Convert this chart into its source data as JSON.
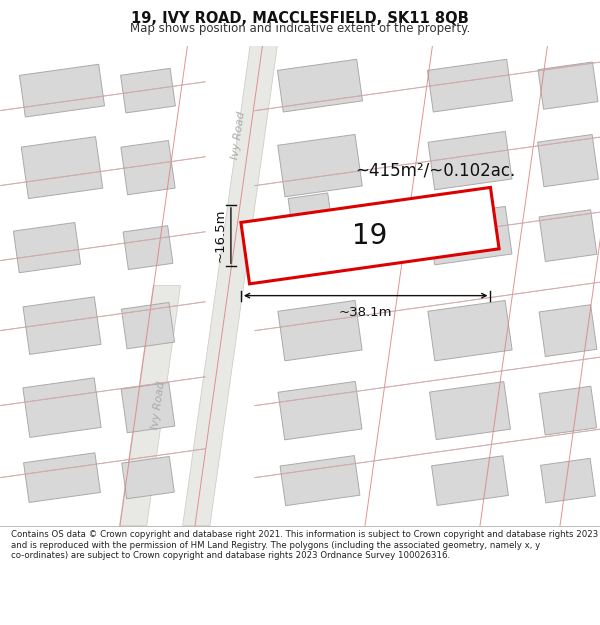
{
  "title": "19, IVY ROAD, MACCLESFIELD, SK11 8QB",
  "subtitle": "Map shows position and indicative extent of the property.",
  "footer": "Contains OS data © Crown copyright and database right 2021. This information is subject to Crown copyright and database rights 2023 and is reproduced with the permission of HM Land Registry. The polygons (including the associated geometry, namely x, y co-ordinates) are subject to Crown copyright and database rights 2023 Ordnance Survey 100026316.",
  "area_text": "~415m²/~0.102ac.",
  "label_19": "19",
  "dim_width": "~38.1m",
  "dim_height": "~16.5m",
  "road_label": "Ivy Road",
  "road_label2": "Ivy Road",
  "title_fontsize": 10.5,
  "subtitle_fontsize": 8.5,
  "footer_fontsize": 6.2,
  "map_bg": "#ffffff",
  "road_fill": "#e8e8e4",
  "road_stroke": "#c8c8c4",
  "building_fill": "#d8d8d8",
  "building_stroke": "#aaaaaa",
  "plot_stroke_red": "#dd0000",
  "plot_stroke_gray": "#b0b0b0",
  "boundary_red": "#e08080",
  "boundary_gray": "#c0c0c0",
  "dim_color": "#111111",
  "road_text_color": "#aaaaaa"
}
